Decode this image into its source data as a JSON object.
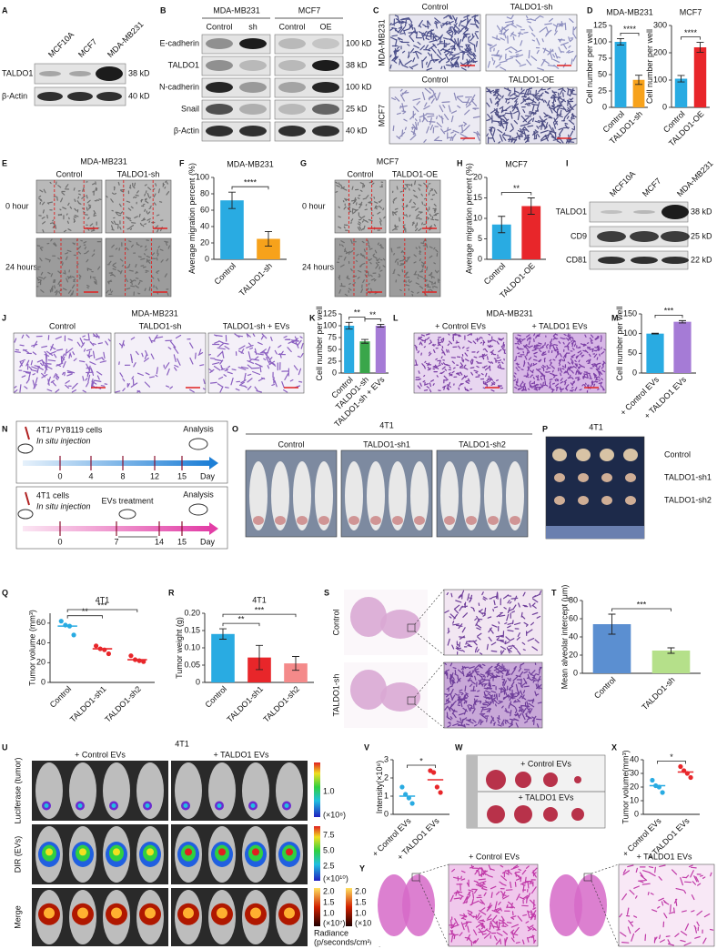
{
  "panels": {
    "A": {
      "label": "A",
      "lanes": [
        "MCF10A",
        "MCF7",
        "MDA-MB231"
      ],
      "rows": [
        "TALDO1",
        "β-Actin"
      ],
      "sizes": [
        "38 kD",
        "40 kD"
      ]
    },
    "B": {
      "label": "B",
      "groups": [
        "MDA-MB231",
        "MCF7"
      ],
      "lanes": [
        "Control",
        "sh",
        "Control",
        "OE"
      ],
      "rows": [
        "E-cadherin",
        "TALDO1",
        "N-cadherin",
        "Snail",
        "β-Actin"
      ],
      "sizes": [
        "100 kD",
        "38 kD",
        "100 kD",
        "25 kD",
        "40 kD"
      ]
    },
    "C": {
      "label": "C",
      "titles": [
        "Control",
        "TALDO1-sh",
        "Control",
        "TALDO1-OE"
      ],
      "rows": [
        "MDA-MB231",
        "MCF7"
      ]
    },
    "E": {
      "label": "E",
      "title": "MDA-MB231",
      "cols": [
        "Control",
        "TALDO1-sh"
      ],
      "rows": [
        "0 hour",
        "24 hours"
      ]
    },
    "G": {
      "label": "G",
      "title": "MCF7",
      "cols": [
        "Control",
        "TALDO1-OE"
      ],
      "rows": [
        "0 hour",
        "24 hours"
      ]
    },
    "I": {
      "label": "I",
      "lanes": [
        "MCF10A",
        "MCF7",
        "MDA-MB231"
      ],
      "rows": [
        "TALDO1",
        "CD9",
        "CD81"
      ],
      "sizes": [
        "38 kD",
        "25 kD",
        "22 kD"
      ]
    },
    "J": {
      "label": "J",
      "title": "MDA-MB231",
      "cols": [
        "Control",
        "TALDO1-sh",
        "TALDO1-sh + EVs"
      ]
    },
    "L": {
      "label": "L",
      "title": "MDA-MB231",
      "cols": [
        "+ Control EVs",
        "+ TALDO1 EVs"
      ]
    },
    "N": {
      "label": "N",
      "top": {
        "cells": "4T1/ PY8119 cells",
        "injection": "In situ injection",
        "analysis": "Analysis",
        "days": [
          0,
          4,
          8,
          12,
          15
        ],
        "unit": "Day"
      },
      "bottom": {
        "cells": "4T1 cells",
        "injection": "In situ injection",
        "treatment": "EVs treatment",
        "analysis": "Analysis",
        "days": [
          0,
          7,
          14,
          15
        ],
        "unit": "Day"
      }
    },
    "O": {
      "label": "O",
      "title": "4T1",
      "groups": [
        "Control",
        "TALDO1-sh1",
        "TALDO1-sh2"
      ]
    },
    "P": {
      "label": "P",
      "title": "4T1",
      "rows": [
        "Control",
        "TALDO1-sh1",
        "TALDO1-sh2"
      ]
    },
    "S": {
      "label": "S",
      "rows": [
        "Control",
        "TALDO1-sh"
      ]
    },
    "U": {
      "label": "U",
      "title": "4T1",
      "cols": [
        "+ Control EVs",
        "+ TALDO1 EVs"
      ],
      "rows": [
        "Luciferase (tumor)",
        "DIR (EVs)",
        "Merge"
      ],
      "scales": [
        [
          "1.0",
          "(×10⁸)"
        ],
        [
          "7.5",
          "5.0",
          "2.5",
          "(×10¹⁰)"
        ],
        [
          "2.0",
          "1.5",
          "1.0",
          "(×10⁷)"
        ],
        [
          "2.0",
          "1.5",
          "1.0",
          "(×10¹¹)"
        ]
      ],
      "radiance": [
        "Radiance",
        "(p/seconds/cm²/sr)"
      ]
    },
    "W": {
      "label": "W",
      "rows": [
        "+ Control EVs",
        "+ TALDO1 EVs"
      ]
    },
    "Y": {
      "label": "Y",
      "cols": [
        "+ Control EVs",
        "+ TALDO1 EVs"
      ]
    }
  },
  "chart_data": [
    {
      "type": "bar",
      "label": "D",
      "title": "MDA-MB231",
      "ylabel": "Cell number per well",
      "categories": [
        "Control",
        "TALDO1-sh"
      ],
      "values": [
        100,
        42
      ],
      "errors": [
        5,
        7
      ],
      "colors": [
        "#29abe2",
        "#f7a21b"
      ],
      "ylim": [
        0,
        125
      ],
      "yticks": [
        0,
        25,
        50,
        75,
        100,
        125
      ],
      "annotations": [
        "****"
      ]
    },
    {
      "type": "bar",
      "title": "MCF7",
      "ylabel": "Cell number per well",
      "categories": [
        "Control",
        "TALDO1-OE"
      ],
      "values": [
        105,
        220
      ],
      "errors": [
        12,
        18
      ],
      "colors": [
        "#29abe2",
        "#e8262a"
      ],
      "ylim": [
        0,
        300
      ],
      "yticks": [
        0,
        100,
        200,
        300
      ],
      "annotations": [
        "****"
      ]
    },
    {
      "type": "bar",
      "label": "F",
      "title": "MDA-MB231",
      "ylabel": "Average migration percent (%)",
      "categories": [
        "Control",
        "TALDO1-sh"
      ],
      "values": [
        72,
        25
      ],
      "errors": [
        10,
        9
      ],
      "colors": [
        "#29abe2",
        "#f7a21b"
      ],
      "ylim": [
        0,
        100
      ],
      "yticks": [
        0,
        20,
        40,
        60,
        80,
        100
      ],
      "annotations": [
        "****"
      ]
    },
    {
      "type": "bar",
      "label": "H",
      "title": "MCF7",
      "ylabel": "Average migration percent (%)",
      "categories": [
        "Control",
        "TALDO1-OE"
      ],
      "values": [
        8.5,
        13
      ],
      "errors": [
        2,
        2
      ],
      "colors": [
        "#29abe2",
        "#e8262a"
      ],
      "ylim": [
        0,
        20
      ],
      "yticks": [
        0,
        5,
        10,
        15,
        20
      ],
      "annotations": [
        "**"
      ]
    },
    {
      "type": "bar",
      "label": "K",
      "ylabel": "Cell number per well",
      "categories": [
        "Control",
        "TALDO1-sh",
        "TALDO1-sh + EVs"
      ],
      "values": [
        100,
        67,
        100
      ],
      "errors": [
        7,
        4,
        3
      ],
      "colors": [
        "#29abe2",
        "#3aa64a",
        "#a57bd6"
      ],
      "ylim": [
        0,
        125
      ],
      "yticks": [
        0,
        25,
        50,
        75,
        100,
        125
      ],
      "annotations": [
        "**",
        "**"
      ]
    },
    {
      "type": "bar",
      "label": "M",
      "ylabel": "Cell number per well",
      "categories": [
        "+ Control EVs",
        "+ TALDO1 EVs"
      ],
      "values": [
        100,
        130
      ],
      "errors": [
        1,
        3
      ],
      "colors": [
        "#29abe2",
        "#a57bd6"
      ],
      "ylim": [
        0,
        150
      ],
      "yticks": [
        0,
        50,
        100,
        150
      ],
      "annotations": [
        "***"
      ]
    },
    {
      "type": "dot",
      "label": "Q",
      "title": "4T1",
      "ylabel": "Tumor volume (mm³)",
      "categories": [
        "Control",
        "TALDO1-sh1",
        "TALDO1-sh2"
      ],
      "values": [
        57,
        34,
        23
      ],
      "points": [
        [
          62,
          58,
          57,
          48
        ],
        [
          37,
          34,
          33,
          29
        ],
        [
          27,
          23,
          22,
          21
        ]
      ],
      "colors": [
        "#29abe2",
        "#e8262a",
        "#e8262a"
      ],
      "ylim": [
        0,
        70
      ],
      "yticks": [
        0,
        20,
        40,
        60
      ],
      "annotations": [
        "**",
        "***"
      ]
    },
    {
      "type": "bar",
      "label": "R",
      "title": "4T1",
      "ylabel": "Tumor weight (g)",
      "categories": [
        "Control",
        "TALDO1-sh1",
        "TALDO1-sh2"
      ],
      "values": [
        0.14,
        0.072,
        0.055
      ],
      "errors": [
        0.015,
        0.035,
        0.02
      ],
      "colors": [
        "#29abe2",
        "#e8262a",
        "#f48a8a"
      ],
      "ylim": [
        0,
        0.2
      ],
      "yticks": [
        0,
        0.05,
        {
          "value": 0.1,
          "label": "0.10"
        },
        0.15,
        {
          "value": 0.2,
          "label": "0.20"
        }
      ],
      "annotations": [
        "**",
        "***"
      ]
    },
    {
      "type": "bar",
      "label": "T",
      "ylabel": "Mean alveolar intercept (μm)",
      "categories": [
        "Control",
        "TALDO1-sh"
      ],
      "values": [
        54,
        25
      ],
      "errors": [
        11,
        3
      ],
      "colors": [
        "#5b8fd1",
        "#b5e08a"
      ],
      "ylim": [
        0,
        80
      ],
      "yticks": [
        0,
        20,
        40,
        60,
        80
      ],
      "annotations": [
        "***"
      ]
    },
    {
      "type": "dot",
      "label": "V",
      "ylabel": "Intensity(×10⁸)",
      "categories": [
        "+ Control EVs",
        "+ TALDO1 EVs"
      ],
      "values": [
        1.0,
        1.9
      ],
      "points": [
        [
          1.5,
          1.1,
          0.9,
          0.6
        ],
        [
          2.4,
          2.3,
          1.5,
          1.2
        ]
      ],
      "colors": [
        "#29abe2",
        "#e8262a"
      ],
      "ylim": [
        0,
        3
      ],
      "yticks": [
        0,
        1,
        2,
        3
      ],
      "annotations": [
        "*"
      ]
    },
    {
      "type": "dot",
      "label": "X",
      "ylabel": "Tumor volume(mm³)",
      "categories": [
        "+ Control EVs",
        "+ TALDO1 EVs"
      ],
      "values": [
        21,
        31
      ],
      "points": [
        [
          25,
          21,
          20,
          16
        ],
        [
          35,
          32,
          30,
          27
        ]
      ],
      "colors": [
        "#29abe2",
        "#e8262a"
      ],
      "ylim": [
        0,
        40
      ],
      "yticks": [
        0,
        10,
        20,
        30,
        40
      ],
      "annotations": [
        "*"
      ]
    }
  ]
}
